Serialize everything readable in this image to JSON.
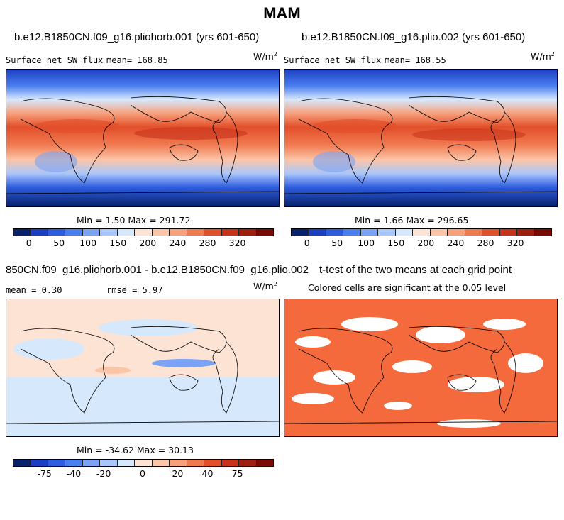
{
  "title": "MAM",
  "panels": [
    {
      "id": "case1",
      "case_title": "b.e12.B1850CN.f09_g16.pliohorb.001 (yrs 601-650)",
      "variable": "Surface net SW flux",
      "mean_text": "mean= 168.85",
      "units": "W/m",
      "units_exp": "2",
      "stats_text": "Min =   1.50 Max = 291.72",
      "colorbar_labels": [
        "0",
        "50",
        "100",
        "150",
        "200",
        "240",
        "280",
        "320"
      ]
    },
    {
      "id": "case2",
      "case_title": "b.e12.B1850CN.f09_g16.plio.002 (yrs 601-650)",
      "variable": "Surface net SW flux",
      "mean_text": "mean= 168.55",
      "units": "W/m",
      "units_exp": "2",
      "stats_text": "Min =   1.66 Max = 296.65",
      "colorbar_labels": [
        "0",
        "50",
        "100",
        "150",
        "200",
        "240",
        "280",
        "320"
      ]
    },
    {
      "id": "diff",
      "case_title": "850CN.f09_g16.pliohorb.001 - b.e12.B1850CN.f09_g16.plio.002",
      "mean_text": "mean =   0.30",
      "rmse_text": "rmse =   5.97",
      "units": "W/m",
      "units_exp": "2",
      "stats_text": "Min = -34.62 Max =  30.13",
      "colorbar_labels": [
        "-75",
        "-40",
        "-20",
        "0",
        "20",
        "40",
        "75"
      ]
    },
    {
      "id": "ttest",
      "case_title": "t-test of the two means at each grid point",
      "subtitle": "Colored cells are significant at the 0.05 level"
    }
  ],
  "colors": {
    "abs_scale": [
      "#08216b",
      "#1c3fc2",
      "#2f5de0",
      "#4a7ff0",
      "#7aa3f5",
      "#a9c6fa",
      "#d6e8fc",
      "#fde3d4",
      "#fbc5a8",
      "#f7a07c",
      "#f07a50",
      "#e2502b",
      "#c8321a",
      "#a01e10",
      "#7a0a05"
    ],
    "diff_scale": [
      "#08216b",
      "#1c3fc2",
      "#2f5de0",
      "#4a7ff0",
      "#7aa3f5",
      "#a9c6fa",
      "#d6e8fc",
      "#fde3d4",
      "#fbc5a8",
      "#f7a07c",
      "#f07a50",
      "#e2502b",
      "#c8321a",
      "#a01e10",
      "#7a0a05"
    ],
    "signif": "#f46a3c"
  }
}
